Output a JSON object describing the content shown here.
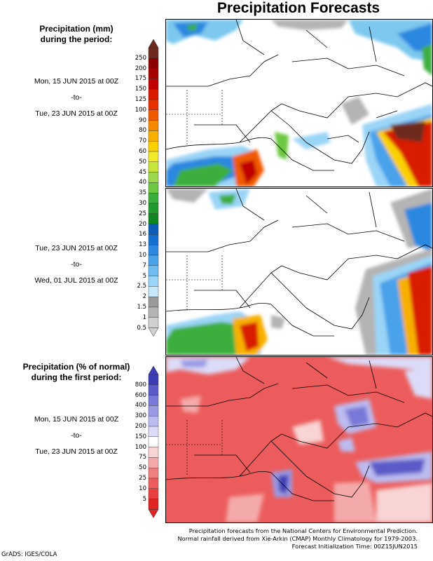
{
  "title": "Precipitation Forecasts",
  "section_mm": {
    "header_line1": "Precipitation (mm)",
    "header_line2": "during the period:",
    "period1": {
      "start": "Mon, 15 JUN 2015 at 00Z",
      "sep": "-to-",
      "end": "Tue, 23 JUN 2015 at 00Z"
    },
    "period2": {
      "start": "Tue, 23 JUN 2015 at 00Z",
      "sep": "-to-",
      "end": "Wed, 01 JUL 2015 at 00Z"
    },
    "colorbar": {
      "labels": [
        "250",
        "200",
        "175",
        "150",
        "125",
        "100",
        "90",
        "80",
        "70",
        "60",
        "50",
        "45",
        "40",
        "35",
        "30",
        "25",
        "20",
        "16",
        "13",
        "10",
        "7",
        "5",
        "2.5",
        "2",
        "1.5",
        "1",
        "0.5"
      ],
      "colors": [
        "#6e2a1e",
        "#8b0000",
        "#a40000",
        "#c00000",
        "#d81a00",
        "#e83000",
        "#f05a00",
        "#f58a00",
        "#f7b000",
        "#fad000",
        "#f0ea2a",
        "#c8e63a",
        "#9cd84a",
        "#6cc840",
        "#3cae3c",
        "#209a2c",
        "#108620",
        "#0c5cb8",
        "#1470d0",
        "#2a88e0",
        "#48a2ea",
        "#6ebcf0",
        "#9ad4f6",
        "#c6e8fa",
        "#9a9a9a",
        "#b4b4b4",
        "#d0d0d0"
      ]
    }
  },
  "section_pct": {
    "header_line1": "Precipitation (% of normal)",
    "header_line2": "during the first period:",
    "period": {
      "start": "Mon, 15 JUN 2015 at 00Z",
      "sep": "-to-",
      "end": "Tue, 23 JUN 2015 at 00Z"
    },
    "colorbar": {
      "labels": [
        "800",
        "600",
        "400",
        "300",
        "200",
        "150",
        "100",
        "75",
        "50",
        "25",
        "10",
        "5"
      ],
      "colors": [
        "#3c3cb4",
        "#5a5ac8",
        "#7878d8",
        "#9a9ae4",
        "#bcbcf0",
        "#dcdcf8",
        "#ffffff",
        "#f8d4d4",
        "#f4aaaa",
        "#f08080",
        "#ec5c5c",
        "#e84040",
        "#e02424"
      ]
    }
  },
  "footer": {
    "line1": "Precipitation forecasts from the National Centers for Environmental Prediction.",
    "line2": "Normal rainfall derived from Xie-Arkin (CMAP) Monthly Climatology for 1979-2003.",
    "line3": "Forecast Initialization Time: 00Z15JUN2015"
  },
  "credit": "GrADS: IGES/COLA"
}
